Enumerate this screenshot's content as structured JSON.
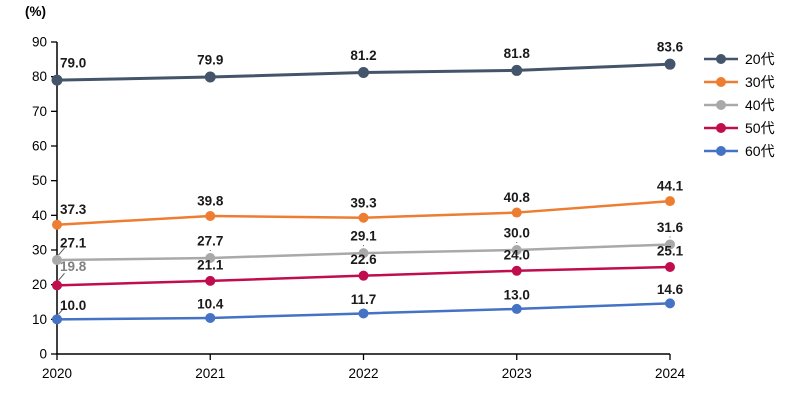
{
  "chart_data": {
    "type": "line",
    "title": "",
    "unit_label": "(%)",
    "x": [
      "2020",
      "2021",
      "2022",
      "2023",
      "2024"
    ],
    "xlabel": "",
    "ylabel": "%",
    "ylim": [
      0,
      90
    ],
    "ytick_step": 10,
    "grid": false,
    "legend_position": "right",
    "axis_color": "#000000",
    "label_color": "#1a1a1a",
    "series": [
      {
        "name": "20代",
        "color": "#44546A",
        "values": [
          79.0,
          79.9,
          81.2,
          81.8,
          83.6
        ]
      },
      {
        "name": "30代",
        "color": "#ED7D31",
        "values": [
          37.3,
          39.8,
          39.3,
          40.8,
          44.1
        ]
      },
      {
        "name": "40代",
        "color": "#A9A9A9",
        "values": [
          27.1,
          27.7,
          29.1,
          30.0,
          31.6
        ]
      },
      {
        "name": "50代",
        "color": "#C00D4E",
        "values": [
          19.8,
          21.1,
          22.6,
          24.0,
          25.1
        ]
      },
      {
        "name": "60代",
        "color": "#4472C4",
        "values": [
          10.0,
          10.4,
          11.7,
          13.0,
          14.6
        ]
      }
    ],
    "label_overrides": [
      {
        "series_index": 3,
        "point_index": 0,
        "color": "#808080"
      }
    ]
  }
}
